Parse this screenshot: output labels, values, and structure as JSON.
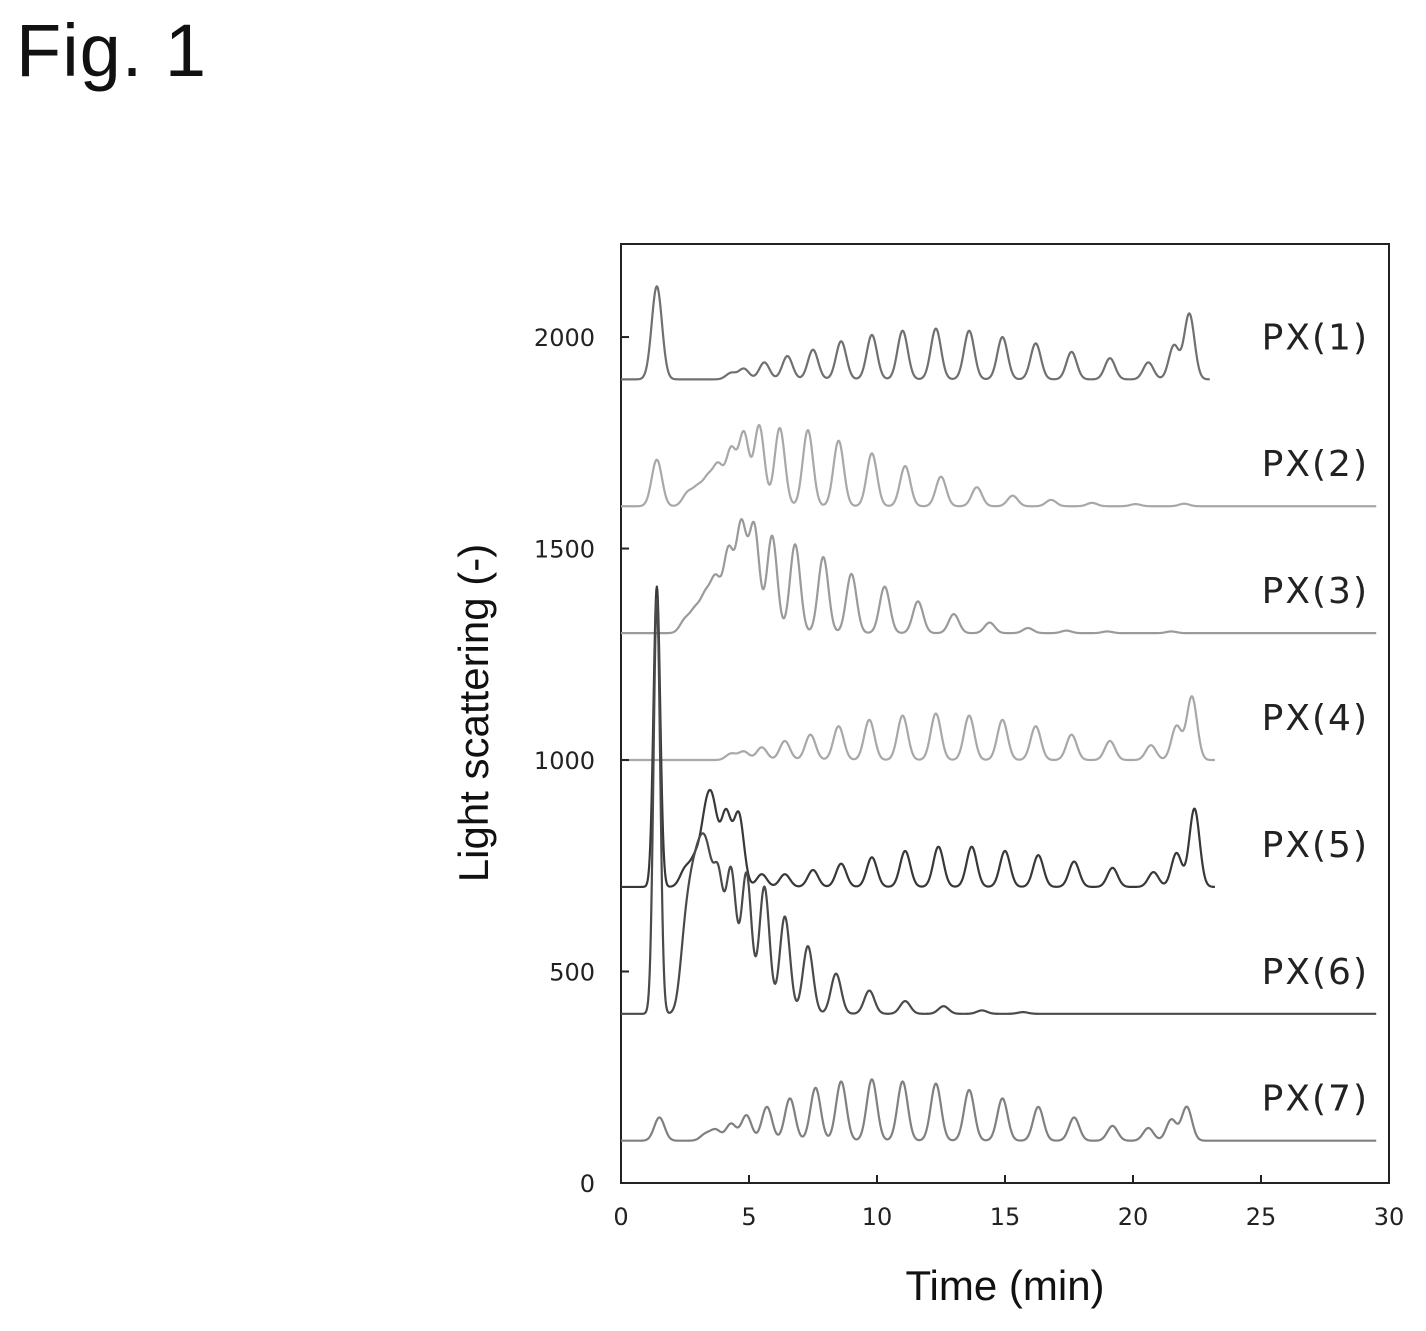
{
  "figure_label": "Fig. 1",
  "colors": {
    "PX(1)": "#707070",
    "PX(2)": "#a8a8a8",
    "PX(3)": "#9a9a9a",
    "PX(4)": "#a8a8a8",
    "PX(5)": "#383838",
    "PX(6)": "#4a4a4a",
    "PX(7)": "#808080"
  },
  "chart_data": {
    "type": "line",
    "title": "",
    "xlabel": "Time (min)",
    "ylabel": "Light scattering (-)",
    "xlim": [
      0,
      30
    ],
    "ylim": [
      0,
      2220
    ],
    "x_ticks": [
      0,
      5,
      10,
      15,
      20,
      25,
      30
    ],
    "y_ticks": [
      0,
      500,
      1000,
      1500,
      2000
    ],
    "grid": false,
    "legend": "labels printed at right end of each trace",
    "series": [
      {
        "name": "PX(1)",
        "baseline": 1900,
        "x_end": 23.0,
        "peaks": [
          [
            1.4,
            220
          ],
          [
            4.3,
            15
          ],
          [
            4.8,
            25
          ],
          [
            5.6,
            40
          ],
          [
            6.5,
            55
          ],
          [
            7.5,
            70
          ],
          [
            8.6,
            90
          ],
          [
            9.8,
            105
          ],
          [
            11.0,
            115
          ],
          [
            12.3,
            120
          ],
          [
            13.6,
            115
          ],
          [
            14.9,
            100
          ],
          [
            16.2,
            85
          ],
          [
            17.6,
            65
          ],
          [
            19.1,
            50
          ],
          [
            20.6,
            40
          ],
          [
            21.6,
            80
          ],
          [
            22.2,
            155
          ]
        ]
      },
      {
        "name": "PX(2)",
        "baseline": 1600,
        "x_end": 29.5,
        "peaks": [
          [
            1.4,
            110
          ],
          [
            2.6,
            30
          ],
          [
            3.0,
            40
          ],
          [
            3.4,
            60
          ],
          [
            3.8,
            90
          ],
          [
            4.3,
            130
          ],
          [
            4.8,
            170
          ],
          [
            5.4,
            190
          ],
          [
            6.2,
            185
          ],
          [
            7.3,
            180
          ],
          [
            8.5,
            155
          ],
          [
            9.8,
            125
          ],
          [
            11.1,
            95
          ],
          [
            12.5,
            70
          ],
          [
            13.9,
            45
          ],
          [
            15.3,
            25
          ],
          [
            16.8,
            15
          ],
          [
            18.4,
            8
          ],
          [
            20.1,
            5
          ],
          [
            22.0,
            6
          ]
        ]
      },
      {
        "name": "PX(3)",
        "baseline": 1300,
        "x_end": 29.5,
        "peaks": [
          [
            2.5,
            30
          ],
          [
            2.9,
            50
          ],
          [
            3.3,
            80
          ],
          [
            3.7,
            120
          ],
          [
            4.2,
            190
          ],
          [
            4.7,
            250
          ],
          [
            5.2,
            250
          ],
          [
            5.9,
            230
          ],
          [
            6.8,
            210
          ],
          [
            7.9,
            180
          ],
          [
            9.0,
            140
          ],
          [
            10.3,
            110
          ],
          [
            11.6,
            75
          ],
          [
            13.0,
            45
          ],
          [
            14.4,
            25
          ],
          [
            15.9,
            12
          ],
          [
            17.4,
            6
          ],
          [
            19.0,
            4
          ],
          [
            21.5,
            4
          ]
        ]
      },
      {
        "name": "PX(4)",
        "baseline": 1000,
        "x_end": 23.2,
        "peaks": [
          [
            4.3,
            15
          ],
          [
            4.8,
            20
          ],
          [
            5.5,
            30
          ],
          [
            6.4,
            45
          ],
          [
            7.4,
            60
          ],
          [
            8.5,
            80
          ],
          [
            9.7,
            95
          ],
          [
            11.0,
            105
          ],
          [
            12.3,
            110
          ],
          [
            13.6,
            105
          ],
          [
            14.9,
            95
          ],
          [
            16.2,
            80
          ],
          [
            17.6,
            60
          ],
          [
            19.1,
            45
          ],
          [
            20.7,
            35
          ],
          [
            21.7,
            80
          ],
          [
            22.3,
            150
          ]
        ]
      },
      {
        "name": "PX(5)",
        "baseline": 700,
        "x_end": 23.2,
        "peaks": [
          [
            1.4,
            710
          ],
          [
            2.5,
            40
          ],
          [
            2.9,
            60
          ],
          [
            3.3,
            140
          ],
          [
            3.6,
            160
          ],
          [
            4.1,
            170
          ],
          [
            4.6,
            170
          ],
          [
            5.5,
            30
          ],
          [
            6.4,
            30
          ],
          [
            7.5,
            40
          ],
          [
            8.6,
            55
          ],
          [
            9.8,
            70
          ],
          [
            11.1,
            85
          ],
          [
            12.4,
            95
          ],
          [
            13.7,
            95
          ],
          [
            15.0,
            85
          ],
          [
            16.3,
            75
          ],
          [
            17.7,
            60
          ],
          [
            19.2,
            45
          ],
          [
            20.8,
            35
          ],
          [
            21.7,
            80
          ],
          [
            22.4,
            185
          ]
        ]
      },
      {
        "name": "PX(6)",
        "baseline": 400,
        "x_end": 29.5,
        "peaks": [
          [
            1.4,
            980
          ],
          [
            2.5,
            160
          ],
          [
            2.8,
            220
          ],
          [
            3.1,
            260
          ],
          [
            3.4,
            270
          ],
          [
            3.8,
            300
          ],
          [
            4.3,
            330
          ],
          [
            4.9,
            330
          ],
          [
            5.6,
            300
          ],
          [
            6.4,
            230
          ],
          [
            7.3,
            160
          ],
          [
            8.4,
            95
          ],
          [
            9.7,
            55
          ],
          [
            11.1,
            30
          ],
          [
            12.6,
            18
          ],
          [
            14.1,
            8
          ],
          [
            15.7,
            4
          ]
        ]
      },
      {
        "name": "PX(7)",
        "baseline": 100,
        "x_end": 29.5,
        "peaks": [
          [
            1.5,
            55
          ],
          [
            3.3,
            15
          ],
          [
            3.7,
            25
          ],
          [
            4.3,
            40
          ],
          [
            4.9,
            60
          ],
          [
            5.7,
            80
          ],
          [
            6.6,
            100
          ],
          [
            7.6,
            125
          ],
          [
            8.6,
            140
          ],
          [
            9.8,
            145
          ],
          [
            11.0,
            140
          ],
          [
            12.3,
            135
          ],
          [
            13.6,
            120
          ],
          [
            14.9,
            100
          ],
          [
            16.3,
            80
          ],
          [
            17.7,
            55
          ],
          [
            19.2,
            35
          ],
          [
            20.6,
            30
          ],
          [
            21.5,
            50
          ],
          [
            22.1,
            80
          ]
        ]
      }
    ]
  }
}
